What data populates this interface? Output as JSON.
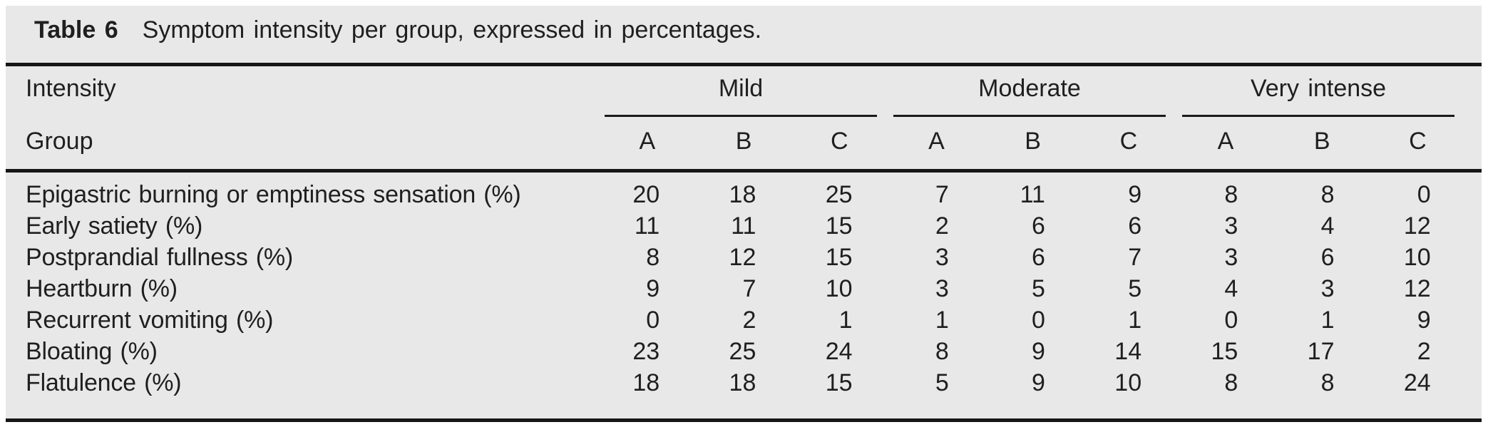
{
  "table": {
    "title_label": "Table 6",
    "caption": "Symptom intensity per group, expressed in percentages.",
    "header": {
      "row1_left": "Intensity",
      "row2_left": "Group",
      "groups": [
        {
          "label": "Mild"
        },
        {
          "label": "Moderate"
        },
        {
          "label": "Very intense"
        }
      ],
      "subcolumns": [
        "A",
        "B",
        "C"
      ]
    },
    "rows": [
      {
        "label": "Epigastric burning or emptiness sensation (%)",
        "values": [
          20,
          18,
          25,
          7,
          11,
          9,
          8,
          8,
          0
        ]
      },
      {
        "label": "Early satiety (%)",
        "values": [
          11,
          11,
          15,
          2,
          6,
          6,
          3,
          4,
          12
        ]
      },
      {
        "label": "Postprandial fullness (%)",
        "values": [
          8,
          12,
          15,
          3,
          6,
          7,
          3,
          6,
          10
        ]
      },
      {
        "label": "Heartburn (%)",
        "values": [
          9,
          7,
          10,
          3,
          5,
          5,
          4,
          3,
          12
        ]
      },
      {
        "label": "Recurrent vomiting (%)",
        "values": [
          0,
          2,
          1,
          1,
          0,
          1,
          0,
          1,
          9
        ]
      },
      {
        "label": "Bloating (%)",
        "values": [
          23,
          25,
          24,
          8,
          9,
          14,
          15,
          17,
          2
        ]
      },
      {
        "label": "Flatulence (%)",
        "values": [
          18,
          18,
          15,
          5,
          9,
          10,
          8,
          8,
          24
        ]
      }
    ],
    "colors": {
      "panel_bg": "#e8e8e9",
      "rule": "#161616",
      "text": "#1f1f1f",
      "page_bg": "#ffffff"
    }
  }
}
